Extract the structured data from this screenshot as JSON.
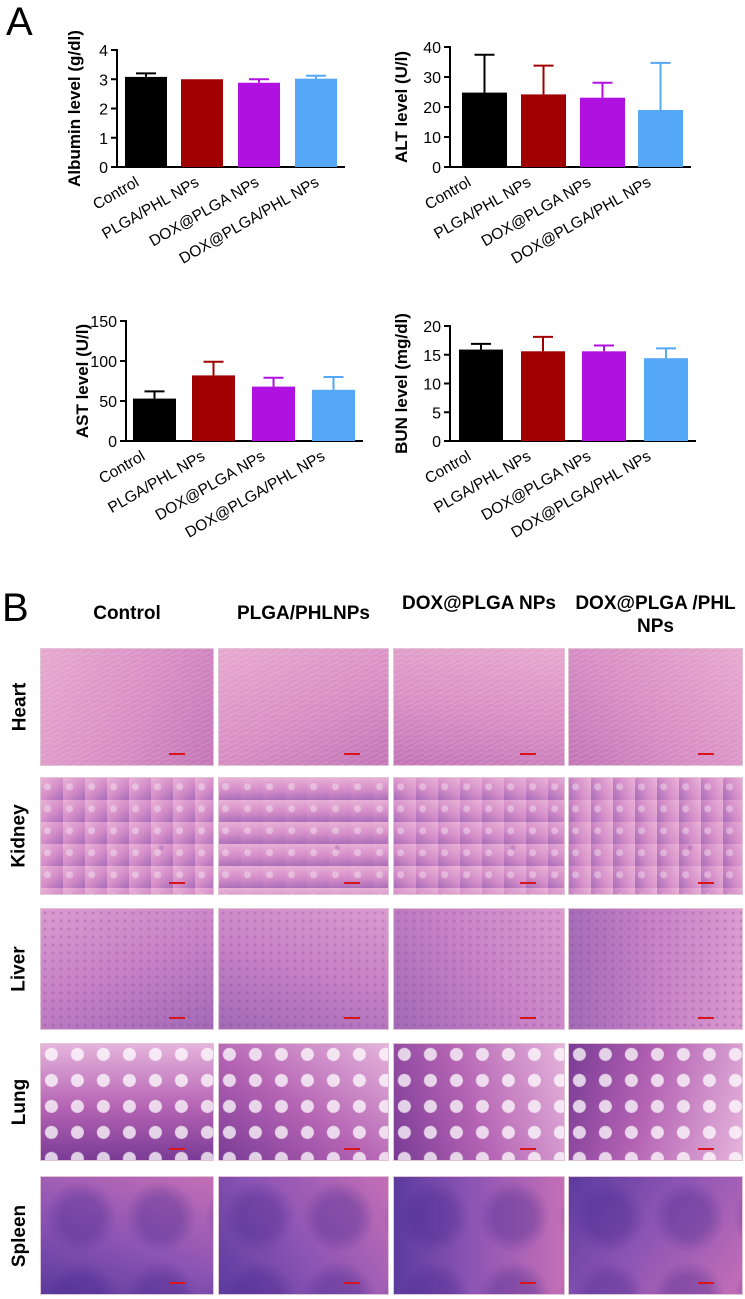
{
  "panel_a_label": "A",
  "panel_b_label": "B",
  "chart_data": [
    {
      "type": "bar",
      "ylabel": "Albumin level (g/dl)",
      "ylim": [
        0,
        4
      ],
      "yticks": [
        0,
        1,
        2,
        3,
        4
      ],
      "categories": [
        "Control",
        "PLGA/PHL NPs",
        "DOX@PLGA NPs",
        "DOX@PLGA/PHL NPs"
      ],
      "values": [
        3.08,
        3.0,
        2.88,
        3.02
      ],
      "errors": [
        0.12,
        0.0,
        0.12,
        0.1
      ],
      "colors": [
        "#000000",
        "#a00000",
        "#b010e0",
        "#55a8f8"
      ]
    },
    {
      "type": "bar",
      "ylabel": "ALT level (U/l)",
      "ylim": [
        0,
        40
      ],
      "yticks": [
        0,
        10,
        20,
        30,
        40
      ],
      "categories": [
        "Control",
        "PLGA/PHL NPs",
        "DOX@PLGA NPs",
        "DOX@PLGA/PHL NPs"
      ],
      "values": [
        24.8,
        24.2,
        23.1,
        19.0
      ],
      "errors": [
        12.6,
        9.6,
        5.0,
        15.7
      ],
      "colors": [
        "#000000",
        "#a00000",
        "#b010e0",
        "#55a8f8"
      ]
    },
    {
      "type": "bar",
      "ylabel": "AST level (U/l)",
      "ylim": [
        0,
        150
      ],
      "yticks": [
        0,
        50,
        100,
        150
      ],
      "categories": [
        "Control",
        "PLGA/PHL NPs",
        "DOX@PLGA NPs",
        "DOX@PLGA/PHL NPs"
      ],
      "values": [
        53,
        82,
        68,
        64
      ],
      "errors": [
        9,
        17,
        11,
        16
      ],
      "colors": [
        "#000000",
        "#a00000",
        "#b010e0",
        "#55a8f8"
      ]
    },
    {
      "type": "bar",
      "ylabel": "BUN level (mg/dl)",
      "ylim": [
        0,
        20
      ],
      "yticks": [
        0,
        5,
        10,
        15,
        20
      ],
      "categories": [
        "Control",
        "PLGA/PHL NPs",
        "DOX@PLGA NPs",
        "DOX@PLGA/PHL NPs"
      ],
      "values": [
        15.9,
        15.6,
        15.6,
        14.4
      ],
      "errors": [
        1.0,
        2.5,
        1.0,
        1.7
      ],
      "colors": [
        "#000000",
        "#a00000",
        "#b010e0",
        "#55a8f8"
      ]
    }
  ],
  "histology": {
    "columns": [
      "Control",
      "PLGA/PHLNPs",
      "DOX@PLGA NPs",
      "DOX@PLGA /PHL NPs"
    ],
    "rows": [
      "Heart",
      "Kidney",
      "Liver",
      "Lung",
      "Spleen"
    ]
  },
  "colors": {
    "scalebar": "#d8141c"
  }
}
